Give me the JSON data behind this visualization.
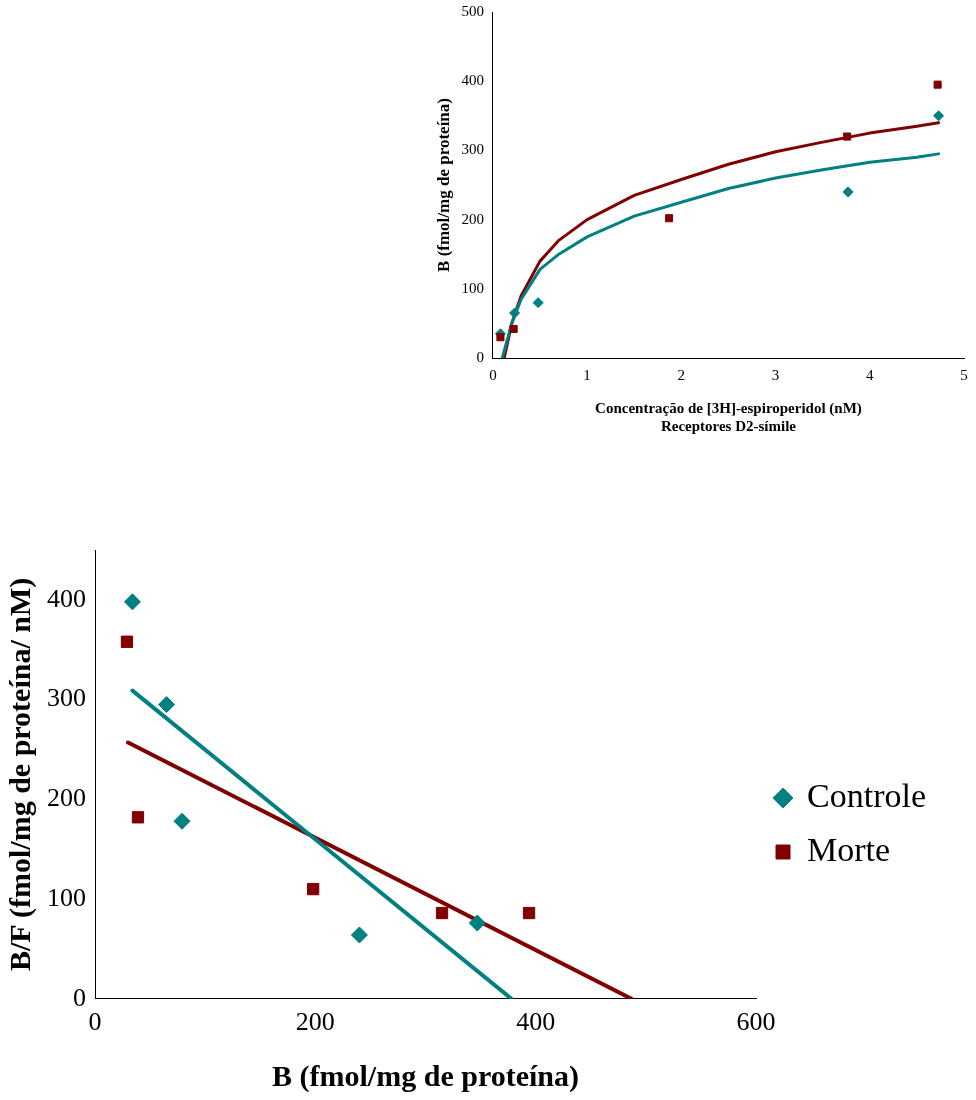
{
  "chart_data": [
    {
      "type": "scatter",
      "ylabel": "B (fmol/mg de proteína)",
      "xlabel": "Concentração de [3H]-espiroperidol (nM)",
      "annotations": [
        "Receptores D2-símile"
      ],
      "xlim": [
        0,
        5
      ],
      "xticks": [
        0,
        1,
        2,
        3,
        4,
        5
      ],
      "ylim": [
        0,
        500
      ],
      "yticks": [
        0,
        100,
        200,
        300,
        400,
        500
      ],
      "grid": false,
      "legend": false,
      "series": [
        {
          "type": "scatter",
          "marker": "diamond",
          "color": "#008080",
          "x": [
            0.08,
            0.23,
            0.48,
            3.77,
            4.73
          ],
          "values": [
            35,
            65,
            80,
            240,
            350
          ]
        },
        {
          "type": "scatter",
          "marker": "square",
          "color": "#800000",
          "x": [
            0.08,
            0.22,
            1.87,
            3.76,
            4.72
          ],
          "values": [
            30,
            42,
            202,
            320,
            395
          ]
        },
        {
          "type": "line",
          "marker": "none",
          "color": "#008080",
          "x": [
            0.1,
            0.2,
            0.3,
            0.5,
            0.7,
            1.0,
            1.5,
            2,
            2.5,
            3,
            3.5,
            4,
            4.5,
            4.73
          ],
          "values": [
            0,
            50,
            85,
            128,
            150,
            175,
            205,
            225,
            245,
            260,
            272,
            283,
            290,
            295
          ]
        },
        {
          "type": "line",
          "marker": "none",
          "color": "#800000",
          "x": [
            0.12,
            0.2,
            0.3,
            0.5,
            0.7,
            1.0,
            1.5,
            2,
            2.5,
            3,
            3.5,
            4,
            4.5,
            4.73
          ],
          "values": [
            0,
            50,
            90,
            140,
            170,
            200,
            235,
            258,
            280,
            298,
            312,
            325,
            335,
            340
          ]
        }
      ]
    },
    {
      "type": "scatter",
      "ylabel": "B/F (fmol/mg de proteína/ nM)",
      "xlabel": "B (fmol/mg de proteína)",
      "xlim": [
        0,
        600
      ],
      "xticks": [
        0,
        200,
        400,
        600
      ],
      "ylim": [
        0,
        450
      ],
      "yticks": [
        0,
        100,
        200,
        300,
        400
      ],
      "grid": false,
      "legend": "right",
      "series": [
        {
          "type": "scatter",
          "name": "Controle",
          "marker": "diamond",
          "color": "#008080",
          "x": [
            34,
            65,
            79,
            240,
            347
          ],
          "values": [
            398,
            295,
            178,
            64,
            76
          ]
        },
        {
          "type": "scatter",
          "name": "Morte",
          "marker": "square",
          "color": "#800000",
          "x": [
            29,
            39,
            198,
            315,
            394
          ],
          "values": [
            358,
            182,
            110,
            86,
            86
          ]
        },
        {
          "type": "line",
          "marker": "none",
          "color": "#008080",
          "x": [
            34,
            378
          ],
          "values": [
            309,
            0
          ]
        },
        {
          "type": "line",
          "marker": "none",
          "color": "#800000",
          "x": [
            30,
            487
          ],
          "values": [
            257,
            0
          ]
        }
      ]
    }
  ]
}
